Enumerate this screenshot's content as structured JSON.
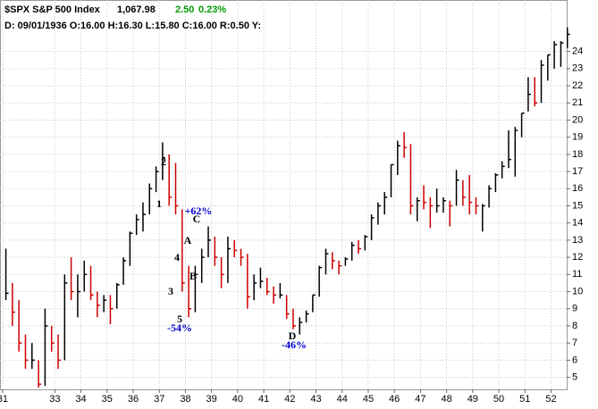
{
  "chart_data": {
    "type": "ohlc",
    "header": {
      "symbol": "$SPX S&P 500 Index",
      "last": "1,067.98",
      "change": "2.50",
      "change_pct": "0.23%",
      "info": "D: 09/01/1936 O:16.00 H:16.30 L:15.80 C:16.00 R:0.50 Y:"
    },
    "up_color": "#000000",
    "down_color": "#cc0000",
    "grid": true,
    "x": [
      31.125,
      31.375,
      31.625,
      31.875,
      32.125,
      32.375,
      32.625,
      32.875,
      33.125,
      33.375,
      33.625,
      33.875,
      34.125,
      34.375,
      34.625,
      34.875,
      35.125,
      35.375,
      35.625,
      35.875,
      36.125,
      36.375,
      36.625,
      36.875,
      37.125,
      37.375,
      37.625,
      37.875,
      38.125,
      38.375,
      38.625,
      38.875,
      39.125,
      39.375,
      39.625,
      39.875,
      40.125,
      40.375,
      40.625,
      40.875,
      41.125,
      41.375,
      41.625,
      41.875,
      42.125,
      42.375,
      42.625,
      42.875,
      43.125,
      43.375,
      43.625,
      43.875,
      44.125,
      44.375,
      44.625,
      44.875,
      45.125,
      45.375,
      45.625,
      45.875,
      46.125,
      46.375,
      46.625,
      46.875,
      47.125,
      47.375,
      47.625,
      47.875,
      48.125,
      48.375,
      48.625,
      48.875,
      49.125,
      49.375,
      49.625,
      49.875,
      50.125,
      50.375,
      50.625,
      50.875,
      51.125,
      51.375,
      51.625,
      51.875,
      52.125,
      52.375,
      52.625
    ],
    "high": [
      12.5,
      10.5,
      9.5,
      7.5,
      7,
      6,
      9,
      8,
      7.5,
      11,
      12,
      11,
      11.8,
      11.5,
      10,
      9.8,
      9.8,
      10.5,
      12,
      13.5,
      14.5,
      15.2,
      16.3,
      17.3,
      18.7,
      18,
      17.5,
      14.8,
      11.5,
      11.5,
      12.5,
      13.8,
      13.2,
      12,
      13.2,
      13,
      12.5,
      12.2,
      11,
      11.4,
      10.8,
      10.3,
      10.5,
      9.8,
      9,
      8.5,
      8.9,
      9.8,
      11.5,
      12.5,
      12.3,
      11.8,
      12,
      12.9,
      13,
      13.3,
      14.5,
      15.2,
      15.8,
      17.4,
      18.8,
      19.3,
      18.6,
      15.5,
      16.2,
      15.5,
      16,
      15.5,
      15.3,
      17.1,
      16.5,
      16.8,
      15.5,
      15.1,
      16.2,
      16.9,
      17.6,
      19.4,
      19.6,
      20.4,
      22.5,
      22.5,
      23.5,
      23.8,
      24.6,
      24.6,
      25.4
    ],
    "low": [
      9.5,
      8,
      6.5,
      5.5,
      5.5,
      4.4,
      4.5,
      6.5,
      5.5,
      6,
      9.5,
      8.5,
      10,
      9.5,
      8.5,
      8.8,
      8.1,
      9,
      10.4,
      11.5,
      13.3,
      13.5,
      14.5,
      15.8,
      16.5,
      15,
      14.5,
      10,
      8.5,
      8.8,
      10.5,
      12,
      11.5,
      10.2,
      10.5,
      12,
      11.5,
      9,
      9.5,
      10.2,
      9.8,
      9.3,
      9.6,
      8.4,
      7.8,
      7.5,
      8.2,
      8.8,
      9.7,
      11,
      11.3,
      11,
      11.5,
      11.8,
      12.2,
      12.4,
      13,
      13.9,
      14.5,
      15.5,
      16.8,
      17.8,
      14.5,
      14.1,
      14.8,
      13.7,
      14.6,
      14.6,
      13.8,
      15,
      15,
      14.5,
      14.5,
      13.5,
      14.9,
      15.8,
      16.6,
      17.2,
      16.7,
      19,
      20.5,
      20.8,
      21,
      22.3,
      23,
      23.1,
      24.2
    ],
    "close": [
      9.9,
      8.8,
      7,
      6,
      6,
      4.6,
      8,
      7,
      6,
      10.5,
      10,
      10,
      11,
      9.8,
      9.2,
      9.5,
      9,
      10.4,
      11.8,
      13.4,
      14.2,
      14.5,
      16,
      17,
      17.8,
      15.5,
      15,
      10.5,
      9,
      11,
      12,
      13,
      12,
      11,
      12.5,
      12.4,
      12,
      9.7,
      10.5,
      10.6,
      10,
      9.8,
      9.8,
      8.7,
      8,
      8.2,
      8.7,
      9.8,
      11.4,
      12.2,
      11.8,
      11.5,
      11.9,
      12.7,
      12.5,
      13.2,
      14.3,
      15,
      15.5,
      17.4,
      18.5,
      18.4,
      15,
      15.3,
      15.2,
      15,
      15,
      15.3,
      15,
      16.5,
      15.5,
      15.2,
      15,
      15,
      16,
      16.8,
      17.3,
      17.7,
      19.4,
      20.4,
      21.5,
      21,
      23.2,
      23.8,
      24.4,
      24.5,
      25
    ],
    "xlim": [
      30.9,
      52.6
    ],
    "xticks": [
      31,
      33,
      34,
      35,
      36,
      37,
      38,
      39,
      40,
      41,
      42,
      43,
      44,
      45,
      46,
      47,
      48,
      49,
      50,
      51,
      52
    ],
    "ylim": [
      4.3,
      27
    ],
    "yticks": [
      5,
      6,
      7,
      8,
      9,
      10,
      11,
      12,
      13,
      14,
      15,
      16,
      17,
      18,
      19,
      20,
      21,
      22,
      23,
      24
    ],
    "annotations": [
      {
        "text": "2",
        "color": "#000000"
      },
      {
        "text": "1",
        "color": "#000000"
      },
      {
        "text": "+62%",
        "color": "#0000cc"
      },
      {
        "text": "C",
        "color": "#000000"
      },
      {
        "text": "A",
        "color": "#000000"
      },
      {
        "text": "4",
        "color": "#000000"
      },
      {
        "text": "B",
        "color": "#000000"
      },
      {
        "text": "3",
        "color": "#000000"
      },
      {
        "text": "5",
        "color": "#000000"
      },
      {
        "text": "-54%",
        "color": "#0000cc"
      },
      {
        "text": "D",
        "color": "#000000"
      },
      {
        "text": "-46%",
        "color": "#0000cc"
      }
    ]
  }
}
